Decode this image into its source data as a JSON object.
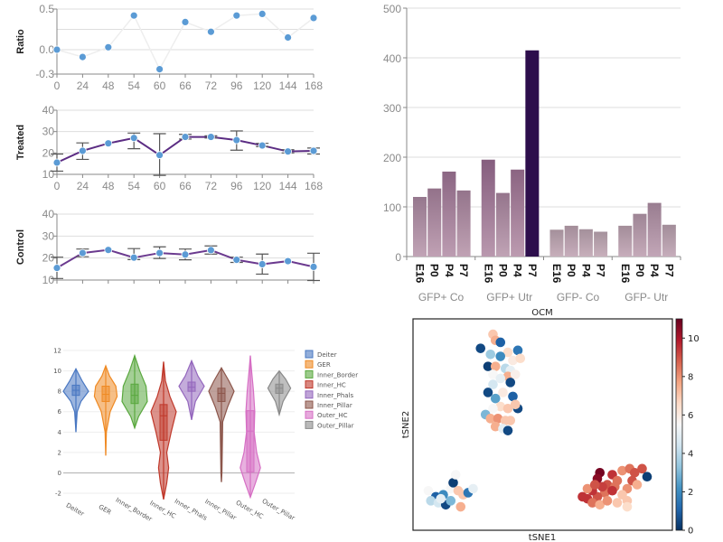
{
  "chart_data": [
    {
      "type": "line",
      "ylabel": "Ratio",
      "categories": [
        "0",
        "24",
        "48",
        "54",
        "60",
        "66",
        "72",
        "96",
        "120",
        "144",
        "168"
      ],
      "ylim": [
        -0.3,
        0.5
      ],
      "yticks": [
        "0.5",
        "0.0",
        "-0.3"
      ],
      "grid": true,
      "line_color": "#eeeeee",
      "point_color": "#5b9bd5",
      "values": [
        0.0,
        -0.09,
        0.03,
        0.42,
        -0.24,
        0.34,
        0.22,
        0.42,
        0.44,
        0.15,
        0.39
      ]
    },
    {
      "type": "line",
      "ylabel": "Treated",
      "categories": [
        "0",
        "24",
        "48",
        "54",
        "60",
        "66",
        "72",
        "96",
        "120",
        "144",
        "168"
      ],
      "ylim": [
        10,
        40
      ],
      "yticks": [
        "10",
        "20",
        "30",
        "40"
      ],
      "grid": true,
      "line_color": "#5b2c83",
      "point_color": "#5b9bd5",
      "values": [
        15.5,
        21,
        24.5,
        27,
        19,
        27.5,
        27.5,
        26,
        23.5,
        20.7,
        21
      ],
      "error_low": [
        11.5,
        17,
        24.5,
        22,
        9.5,
        26.5,
        27,
        21.3,
        23,
        20,
        19.5
      ],
      "error_high": [
        19.5,
        24.7,
        24.5,
        29.3,
        29,
        28.7,
        28,
        30.3,
        24.5,
        21.5,
        22.3
      ]
    },
    {
      "type": "line",
      "ylabel": "Control",
      "categories": [
        "0",
        "24",
        "48",
        "54",
        "60",
        "66",
        "72",
        "96",
        "120",
        "144",
        "168"
      ],
      "ylim": [
        10,
        40
      ],
      "yticks": [
        "10",
        "20",
        "30",
        "40"
      ],
      "grid": true,
      "show_xtick_labels": false,
      "line_color": "#6b3a8f",
      "point_color": "#5b9bd5",
      "values": [
        15.5,
        22.3,
        23.7,
        20.2,
        22.3,
        21.6,
        23.6,
        19.2,
        17.2,
        18.6,
        16
      ],
      "error_low": [
        10.7,
        20.6,
        23.7,
        19.3,
        19.8,
        19.2,
        21.8,
        18,
        12.7,
        18.6,
        9.8
      ],
      "error_high": [
        20.4,
        24.1,
        23.7,
        24.3,
        25.1,
        24.1,
        25.5,
        20.4,
        21.8,
        18.6,
        22.2
      ]
    },
    {
      "type": "bar",
      "xlabel": "OCM",
      "ylim": [
        0,
        500
      ],
      "yticks": [
        "0",
        "100",
        "200",
        "300",
        "400",
        "500"
      ],
      "grid": true,
      "groups": [
        {
          "name": "GFP+ Co",
          "categories": [
            "E16",
            "P0",
            "P4",
            "P7"
          ],
          "values": [
            120,
            137,
            171,
            133
          ]
        },
        {
          "name": "GFP+ Utr",
          "categories": [
            "E16",
            "P0",
            "P4",
            "P7"
          ],
          "values": [
            195,
            128,
            175,
            415
          ]
        },
        {
          "name": "GFP- Co",
          "categories": [
            "E16",
            "P0",
            "P4",
            "P7"
          ],
          "values": [
            54,
            62,
            55,
            50
          ]
        },
        {
          "name": "GFP- Utr",
          "categories": [
            "E16",
            "P0",
            "P4",
            "P7"
          ],
          "values": [
            62,
            86,
            108,
            64
          ]
        }
      ]
    },
    {
      "type": "violin",
      "ylim": [
        -2,
        12
      ],
      "yticks": [
        "-2",
        "0",
        "2",
        "4",
        "6",
        "8",
        "10",
        "12"
      ],
      "grid": true,
      "legend": "right",
      "series": [
        {
          "name": "Deiter",
          "color": "#4a78c2",
          "min": 4,
          "max": 10.2,
          "q1": 7.6,
          "median": 8.1,
          "q3": 8.6,
          "density": [
            [
              4,
              0
            ],
            [
              6,
              0.1
            ],
            [
              7,
              0.4
            ],
            [
              8,
              1
            ],
            [
              9,
              0.5
            ],
            [
              10.2,
              0
            ]
          ]
        },
        {
          "name": "GER",
          "color": "#ef8a24",
          "min": 1.7,
          "max": 10.5,
          "q1": 7,
          "median": 7.7,
          "q3": 8.5,
          "density": [
            [
              1.7,
              0
            ],
            [
              4,
              0.05
            ],
            [
              6,
              0.35
            ],
            [
              7.5,
              0.9
            ],
            [
              8.5,
              0.8
            ],
            [
              9.5,
              0.3
            ],
            [
              10.5,
              0
            ]
          ]
        },
        {
          "name": "Inner_Border",
          "color": "#5aa83f",
          "min": 4.4,
          "max": 11.5,
          "q1": 6.8,
          "median": 7.6,
          "q3": 8.7,
          "density": [
            [
              4.4,
              0
            ],
            [
              5.5,
              0.3
            ],
            [
              7,
              1
            ],
            [
              8.5,
              0.9
            ],
            [
              10,
              0.4
            ],
            [
              11.5,
              0
            ]
          ]
        },
        {
          "name": "Inner_HC",
          "color": "#c0392b",
          "min": -2.6,
          "max": 10.9,
          "q1": 3.2,
          "median": 5.6,
          "q3": 6.7,
          "density": [
            [
              -2.6,
              0
            ],
            [
              -1,
              0.25
            ],
            [
              0.5,
              0.4
            ],
            [
              2,
              0.25
            ],
            [
              4,
              0.6
            ],
            [
              6,
              1
            ],
            [
              7.5,
              0.5
            ],
            [
              9,
              0.15
            ],
            [
              10.9,
              0
            ]
          ]
        },
        {
          "name": "Inner_Phals",
          "color": "#9467bd",
          "min": 5.2,
          "max": 11,
          "q1": 8,
          "median": 8.4,
          "q3": 8.9,
          "density": [
            [
              5.2,
              0
            ],
            [
              7,
              0.3
            ],
            [
              8.5,
              1
            ],
            [
              9.5,
              0.5
            ],
            [
              11,
              0
            ]
          ]
        },
        {
          "name": "Inner_Pillar",
          "color": "#8c564b",
          "min": -0.9,
          "max": 10.3,
          "q1": 7,
          "median": 7.8,
          "q3": 8.3,
          "density": [
            [
              -0.9,
              0
            ],
            [
              0,
              0.04
            ],
            [
              5,
              0.1
            ],
            [
              6.5,
              0.5
            ],
            [
              8,
              1
            ],
            [
              9,
              0.6
            ],
            [
              10.3,
              0
            ]
          ]
        },
        {
          "name": "Outer_HC",
          "color": "#d66fc4",
          "min": -2.4,
          "max": 11.5,
          "q1": 0.1,
          "median": 4.1,
          "q3": 6.1,
          "density": [
            [
              -2.4,
              0
            ],
            [
              -1,
              0.4
            ],
            [
              0.5,
              0.8
            ],
            [
              2,
              0.5
            ],
            [
              4,
              0.3
            ],
            [
              6,
              0.35
            ],
            [
              8,
              0.25
            ],
            [
              10,
              0.1
            ],
            [
              11.5,
              0
            ]
          ]
        },
        {
          "name": "Outer_Pillar",
          "color": "#8a8a8a",
          "min": 5.7,
          "max": 10,
          "q1": 7.8,
          "median": 8.3,
          "q3": 8.7,
          "density": [
            [
              5.7,
              0
            ],
            [
              7,
              0.3
            ],
            [
              8.3,
              0.9
            ],
            [
              9.2,
              0.5
            ],
            [
              10,
              0
            ]
          ]
        }
      ]
    },
    {
      "type": "scatter",
      "xlabel": "tSNE1",
      "ylabel": "tSNE2",
      "colorbar": {
        "range": [
          0,
          11
        ],
        "ticks": [
          "0",
          "2",
          "4",
          "6",
          "8",
          "10"
        ],
        "colormap": "RdBu_r"
      },
      "points": [
        [
          30,
          95,
          7
        ],
        [
          31,
          92,
          7.5
        ],
        [
          33,
          91,
          1
        ],
        [
          25,
          88,
          0.5
        ],
        [
          36,
          86,
          6.5
        ],
        [
          40,
          87,
          1.5
        ],
        [
          29,
          85,
          3.5
        ],
        [
          33,
          84,
          2
        ],
        [
          38,
          82,
          6
        ],
        [
          41,
          83,
          6.5
        ],
        [
          28,
          79,
          0.3
        ],
        [
          31,
          79,
          7.5
        ],
        [
          35,
          78,
          4
        ],
        [
          37,
          77,
          5
        ],
        [
          30,
          75,
          5.5
        ],
        [
          36,
          74,
          7.5
        ],
        [
          39,
          75,
          5.8
        ],
        [
          33,
          73,
          5
        ],
        [
          37,
          71,
          0.5
        ],
        [
          30,
          70,
          4.5
        ],
        [
          28,
          66,
          0.5
        ],
        [
          34,
          66,
          6
        ],
        [
          38,
          64,
          1
        ],
        [
          31,
          63,
          2.5
        ],
        [
          33,
          59,
          6.5
        ],
        [
          36,
          58,
          7
        ],
        [
          30,
          58,
          5.5
        ],
        [
          40,
          58,
          0.5
        ],
        [
          39,
          60,
          7
        ],
        [
          27,
          55,
          3
        ],
        [
          29,
          53,
          7.5
        ],
        [
          32,
          53,
          8
        ],
        [
          35,
          52,
          7
        ],
        [
          37,
          52,
          7
        ],
        [
          31,
          49,
          7.5
        ],
        [
          34,
          48,
          5
        ],
        [
          36,
          47,
          0.5
        ],
        [
          4,
          17,
          5.5
        ],
        [
          7,
          14,
          1
        ],
        [
          10,
          15,
          2
        ],
        [
          13,
          18,
          5.5
        ],
        [
          14,
          21,
          0.3
        ],
        [
          15,
          25,
          5.5
        ],
        [
          16,
          17,
          7
        ],
        [
          18,
          15,
          7
        ],
        [
          20,
          16,
          1.5
        ],
        [
          22,
          18,
          5
        ],
        [
          5,
          12,
          4
        ],
        [
          8,
          11,
          4.5
        ],
        [
          11,
          10,
          0.5
        ],
        [
          13,
          12,
          3
        ],
        [
          17,
          9,
          7.5
        ],
        [
          9,
          13,
          5
        ],
        [
          73,
          26,
          10.8
        ],
        [
          72,
          23,
          10.5
        ],
        [
          78,
          25,
          9.5
        ],
        [
          76,
          20,
          9
        ],
        [
          80,
          22,
          8.5
        ],
        [
          82,
          27,
          8
        ],
        [
          85,
          28,
          8.5
        ],
        [
          87,
          26,
          9
        ],
        [
          90,
          28,
          9
        ],
        [
          92,
          24,
          0.3
        ],
        [
          86,
          22,
          9
        ],
        [
          88,
          20,
          7.5
        ],
        [
          84,
          18,
          8
        ],
        [
          82,
          15,
          7
        ],
        [
          79,
          19,
          8.5
        ],
        [
          75,
          16,
          8.5
        ],
        [
          72,
          14,
          9
        ],
        [
          70,
          17,
          9.5
        ],
        [
          68,
          13,
          9.5
        ],
        [
          66,
          14,
          9.5
        ],
        [
          70,
          11,
          8.5
        ],
        [
          73,
          10,
          7.5
        ],
        [
          76,
          12,
          8
        ],
        [
          80,
          11,
          7
        ],
        [
          84,
          12,
          7
        ],
        [
          84,
          9,
          6.5
        ],
        [
          78,
          17,
          9.5
        ],
        [
          74,
          19,
          9.3
        ],
        [
          68,
          18,
          8
        ],
        [
          71,
          20,
          9
        ]
      ]
    }
  ]
}
